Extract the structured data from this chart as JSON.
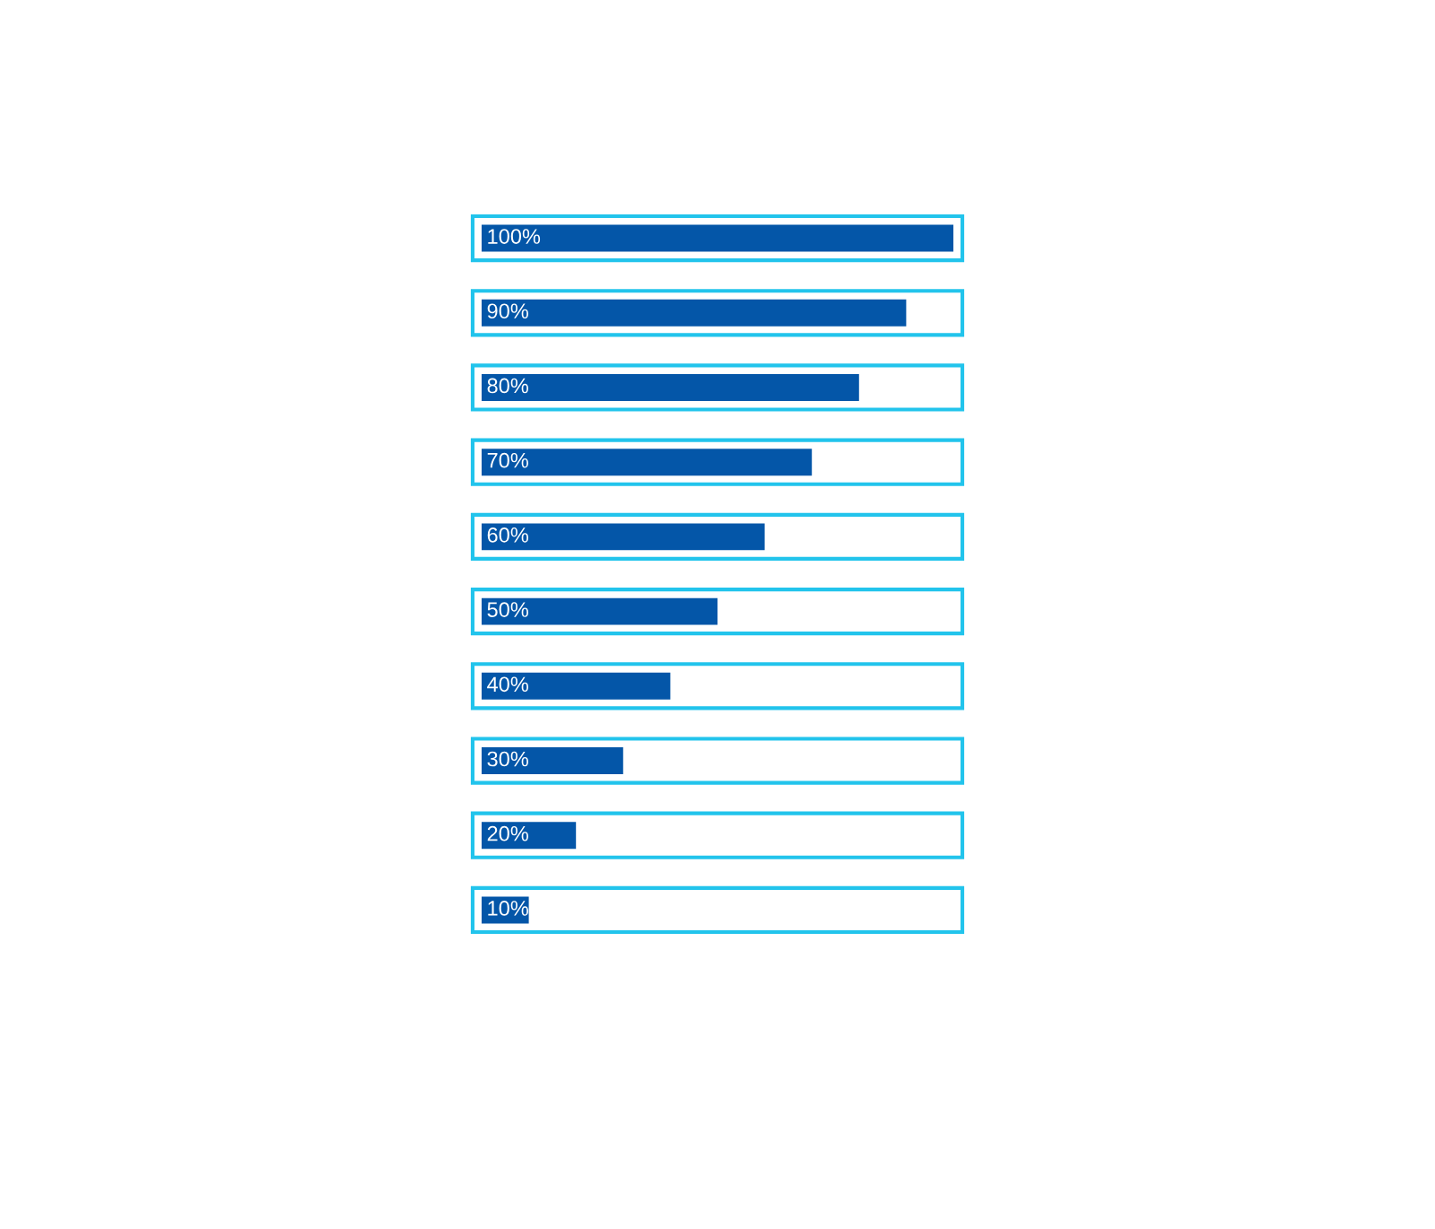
{
  "chart_data": {
    "type": "bar",
    "orientation": "horizontal",
    "categories": [
      null,
      null,
      null,
      null,
      null,
      null,
      null,
      null,
      null,
      null
    ],
    "color": "#0456a8",
    "values": [
      100,
      90,
      80,
      70,
      60,
      50,
      40,
      30,
      20,
      10
    ],
    "value_labels": [
      "100%",
      "90%",
      "80%",
      "70%",
      "60%",
      "50%",
      "40%",
      "30%",
      "20%",
      "10%"
    ],
    "tick_labels": false
  }
}
